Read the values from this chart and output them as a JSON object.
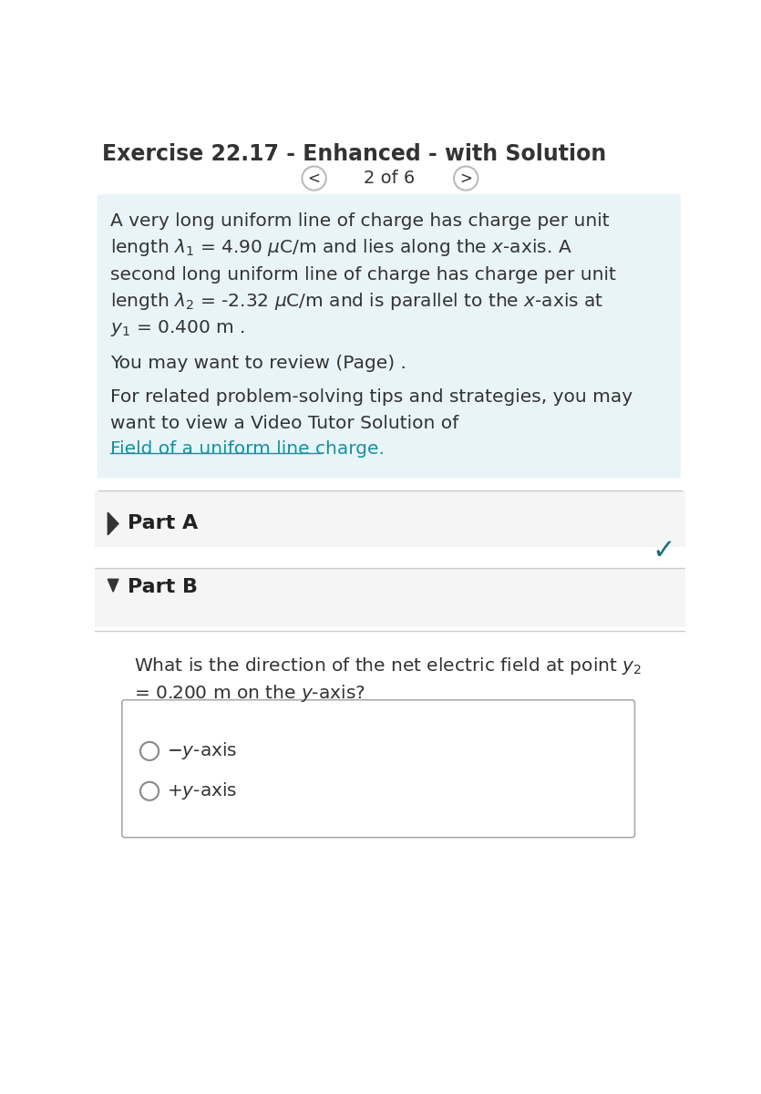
{
  "title": "Exercise 22.17 - Enhanced - with Solution",
  "nav_text": "2 of 6",
  "bg_color": "#ffffff",
  "info_box_bg": "#e8f4f7",
  "part_a_bg": "#f5f5f5",
  "part_b_bg": "#f5f5f5",
  "answer_box_bg": "#ffffff",
  "answer_box_border": "#aaaaaa",
  "link_color": "#1a8fa0",
  "checkmark_color": "#1a6e7a",
  "dark_text": "#333333",
  "nav_circle_color": "#bbbbbb",
  "part_label_color": "#222222",
  "review_line": "You may want to review (Page) .",
  "for_related_lines": [
    "For related problem-solving tips and strategies, you may",
    "want to view a Video Tutor Solution of"
  ],
  "link_text": "Field of a uniform line charge.",
  "separator_color": "#cccccc"
}
